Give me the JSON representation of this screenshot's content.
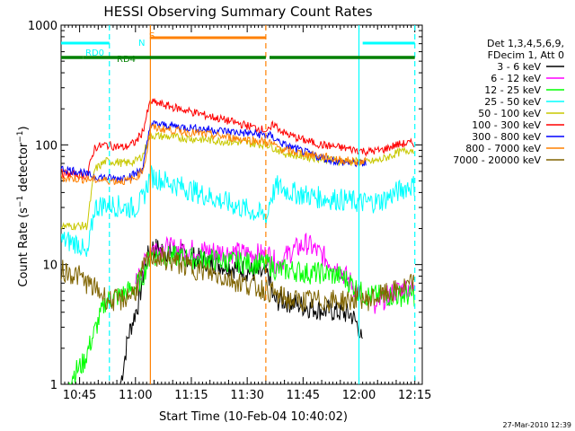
{
  "chart_data": {
    "type": "line",
    "title": "HESSI Observing Summary Count Rates",
    "xlabel": "Start Time (10-Feb-04 10:40:02)",
    "ylabel": "Count Rate (s⁻¹ detector⁻¹)",
    "yscale": "log",
    "ylim": [
      1,
      1000
    ],
    "xlim_minutes": [
      640.03,
      737
    ],
    "x_ticks": [
      "10:45",
      "11:00",
      "11:15",
      "11:30",
      "11:45",
      "12:00",
      "12:15"
    ],
    "y_ticks": [
      "1",
      "10",
      "100",
      "1000"
    ],
    "legend": {
      "placement": "right",
      "header": [
        "Det 1,3,4,5,6,9,",
        "FDecim 1, Att 0"
      ]
    },
    "series": [
      {
        "name": "3 - 6 keV",
        "color": "#000000",
        "x": [
          "10:40",
          "10:46",
          "10:53",
          "10:56",
          "10:58",
          "11:00",
          "11:01",
          "11:02",
          "11:04",
          "11:36",
          "11:37",
          "11:40",
          "11:45",
          "11:50",
          "11:55",
          "11:58",
          "12:00",
          "12:01",
          "12:02"
        ],
        "y": [
          null,
          null,
          null,
          1,
          2.5,
          4,
          5,
          8,
          14,
          8,
          5,
          5,
          4.5,
          4.2,
          4,
          3.8,
          3,
          2,
          null
        ]
      },
      {
        "name": "6 - 12 keV",
        "color": "#ff00ff",
        "x": [
          "10:40",
          "10:57",
          "11:00",
          "11:02",
          "11:04",
          "11:36",
          "11:38",
          "11:42",
          "11:46",
          "11:50",
          "11:55",
          "11:58",
          "12:00",
          "12:02",
          "12:04",
          "12:06",
          "12:10",
          "12:13",
          "12:15"
        ],
        "y": [
          null,
          null,
          7,
          9,
          14,
          12,
          10,
          13,
          15,
          12,
          9,
          7,
          5.5,
          null,
          4,
          5,
          6,
          6.5,
          6
        ]
      },
      {
        "name": "12 - 25 keV",
        "color": "#00ff00",
        "x": [
          "10:42",
          "10:43",
          "10:46",
          "10:52",
          "10:56",
          "10:58",
          "11:00",
          "11:02",
          "11:04",
          "11:36",
          "11:38",
          "11:42",
          "11:46",
          "11:50",
          "11:55",
          "11:58",
          "12:00",
          "12:02",
          "12:06",
          "12:10",
          "12:13",
          "12:15"
        ],
        "y": [
          1.1,
          1.2,
          1.5,
          5,
          5.5,
          6,
          6.5,
          8,
          12,
          10,
          9,
          9,
          8.5,
          8.5,
          8,
          7,
          6,
          5.5,
          5.5,
          5.5,
          5.5,
          5.5
        ]
      },
      {
        "name": "25 - 50 keV",
        "color": "#00ffff",
        "x": [
          "10:40",
          "10:45",
          "10:47",
          "10:49",
          "10:52",
          "10:55",
          "10:57",
          "11:00",
          "11:02",
          "11:03",
          "11:04",
          "11:35.5",
          "11:36",
          "11:38",
          "11:42",
          "11:46",
          "11:50",
          "11:55",
          "12:00",
          "12:02",
          "12:06",
          "12:10",
          "12:13",
          "12:15"
        ],
        "y": [
          16,
          15,
          11,
          30,
          32,
          31,
          30,
          30,
          35,
          45,
          55,
          25,
          35,
          45,
          40,
          38,
          36,
          35,
          33,
          33,
          34,
          40,
          45,
          46
        ]
      },
      {
        "name": "50 - 100 keV",
        "color": "#c8c800",
        "x": [
          "10:40",
          "10:45",
          "10:47",
          "10:49",
          "10:52",
          "10:55",
          "10:57",
          "11:00",
          "11:02",
          "11:03",
          "11:04",
          "11:36",
          "11:37",
          "11:40",
          "11:45",
          "11:50",
          "11:55",
          "12:00",
          "12:02",
          "12:06",
          "12:10",
          "12:13",
          "12:15"
        ],
        "y": [
          21,
          21,
          21,
          62,
          73,
          72,
          70,
          73,
          82,
          100,
          120,
          100,
          95,
          85,
          80,
          77,
          73,
          72,
          71,
          75,
          85,
          90,
          92
        ]
      },
      {
        "name": "100 - 300 keV",
        "color": "#ff0000",
        "x": [
          "10:40",
          "10:45",
          "10:47",
          "10:49",
          "10:52",
          "10:55",
          "10:57",
          "11:00",
          "11:02",
          "11:03",
          "11:04",
          "11:36",
          "11:37",
          "11:40",
          "11:45",
          "11:50",
          "11:55",
          "12:00",
          "12:02",
          "12:06",
          "12:10",
          "12:13",
          "12:15"
        ],
        "y": [
          58,
          56,
          55,
          95,
          100,
          97,
          95,
          105,
          130,
          175,
          230,
          130,
          150,
          125,
          110,
          100,
          95,
          90,
          88,
          90,
          100,
          103,
          103
        ]
      },
      {
        "name": "300 - 800 keV",
        "color": "#0000ff",
        "x": [
          "10:40",
          "10:45",
          "10:47",
          "10:50",
          "10:55",
          "11:00",
          "11:02",
          "11:03",
          "11:04",
          "11:36",
          "11:37",
          "11:40",
          "11:45",
          "11:50",
          "11:55",
          "12:00",
          "12:02"
        ],
        "y": [
          63,
          60,
          56,
          54,
          52,
          57,
          65,
          95,
          150,
          120,
          115,
          100,
          88,
          78,
          72,
          70,
          70
        ]
      },
      {
        "name": "800 - 7000 keV",
        "color": "#ff8000",
        "x": [
          "10:40",
          "10:45",
          "10:50",
          "10:55",
          "10:58",
          "11:00",
          "11:02",
          "11:03",
          "11:04",
          "11:36",
          "11:37",
          "11:40",
          "11:45",
          "11:50",
          "11:55",
          "12:00",
          "12:02"
        ],
        "y": [
          53,
          52,
          51,
          50,
          50,
          53,
          62,
          85,
          140,
          105,
          100,
          90,
          85,
          80,
          75,
          72,
          72
        ]
      },
      {
        "name": "7000 - 20000 keV",
        "color": "#806400",
        "x": [
          "10:40",
          "10:45",
          "10:47",
          "10:50",
          "10:53",
          "10:56",
          "10:58",
          "11:00",
          "11:02",
          "11:04",
          "11:36",
          "11:38",
          "11:42",
          "11:46",
          "11:50",
          "11:55",
          "11:58",
          "12:00",
          "12:02",
          "12:06",
          "12:10",
          "12:15"
        ],
        "y": [
          9,
          8,
          7,
          6,
          5,
          5,
          5.5,
          6,
          9,
          12,
          6,
          5.5,
          5,
          5,
          5,
          5,
          5,
          5.5,
          5,
          5.5,
          6,
          7
        ]
      }
    ],
    "annotations": {
      "state_bars": [
        {
          "label": "RD0",
          "color": "#00ffff",
          "segments": [
            [
              "10:40",
              "10:53"
            ],
            [
              "12:01",
              "12:15"
            ]
          ]
        },
        {
          "label": "RD4",
          "color": "#008000",
          "segments": [
            [
              "10:40",
              "10:46"
            ],
            [
              "10:46",
              "11:35"
            ],
            [
              "11:36",
              "12:15"
            ]
          ]
        },
        {
          "label": "N",
          "color": "#00ffff",
          "segments": []
        },
        {
          "label": "S",
          "color": "#ff8000",
          "segments": [
            [
              "11:04",
              "11:35"
            ]
          ]
        }
      ],
      "vertical_lines": [
        {
          "time": "10:53",
          "color": "#00ffff",
          "style": "dashed"
        },
        {
          "time": "11:04",
          "color": "#ff8000",
          "style": "solid"
        },
        {
          "time": "11:35",
          "color": "#ff8000",
          "style": "dashed"
        },
        {
          "time": "12:00",
          "color": "#00ffff",
          "style": "solid"
        },
        {
          "time": "12:15",
          "color": "#00ffff",
          "style": "dashed"
        }
      ]
    },
    "footer_timestamp": "27-Mar-2010 12:39"
  }
}
